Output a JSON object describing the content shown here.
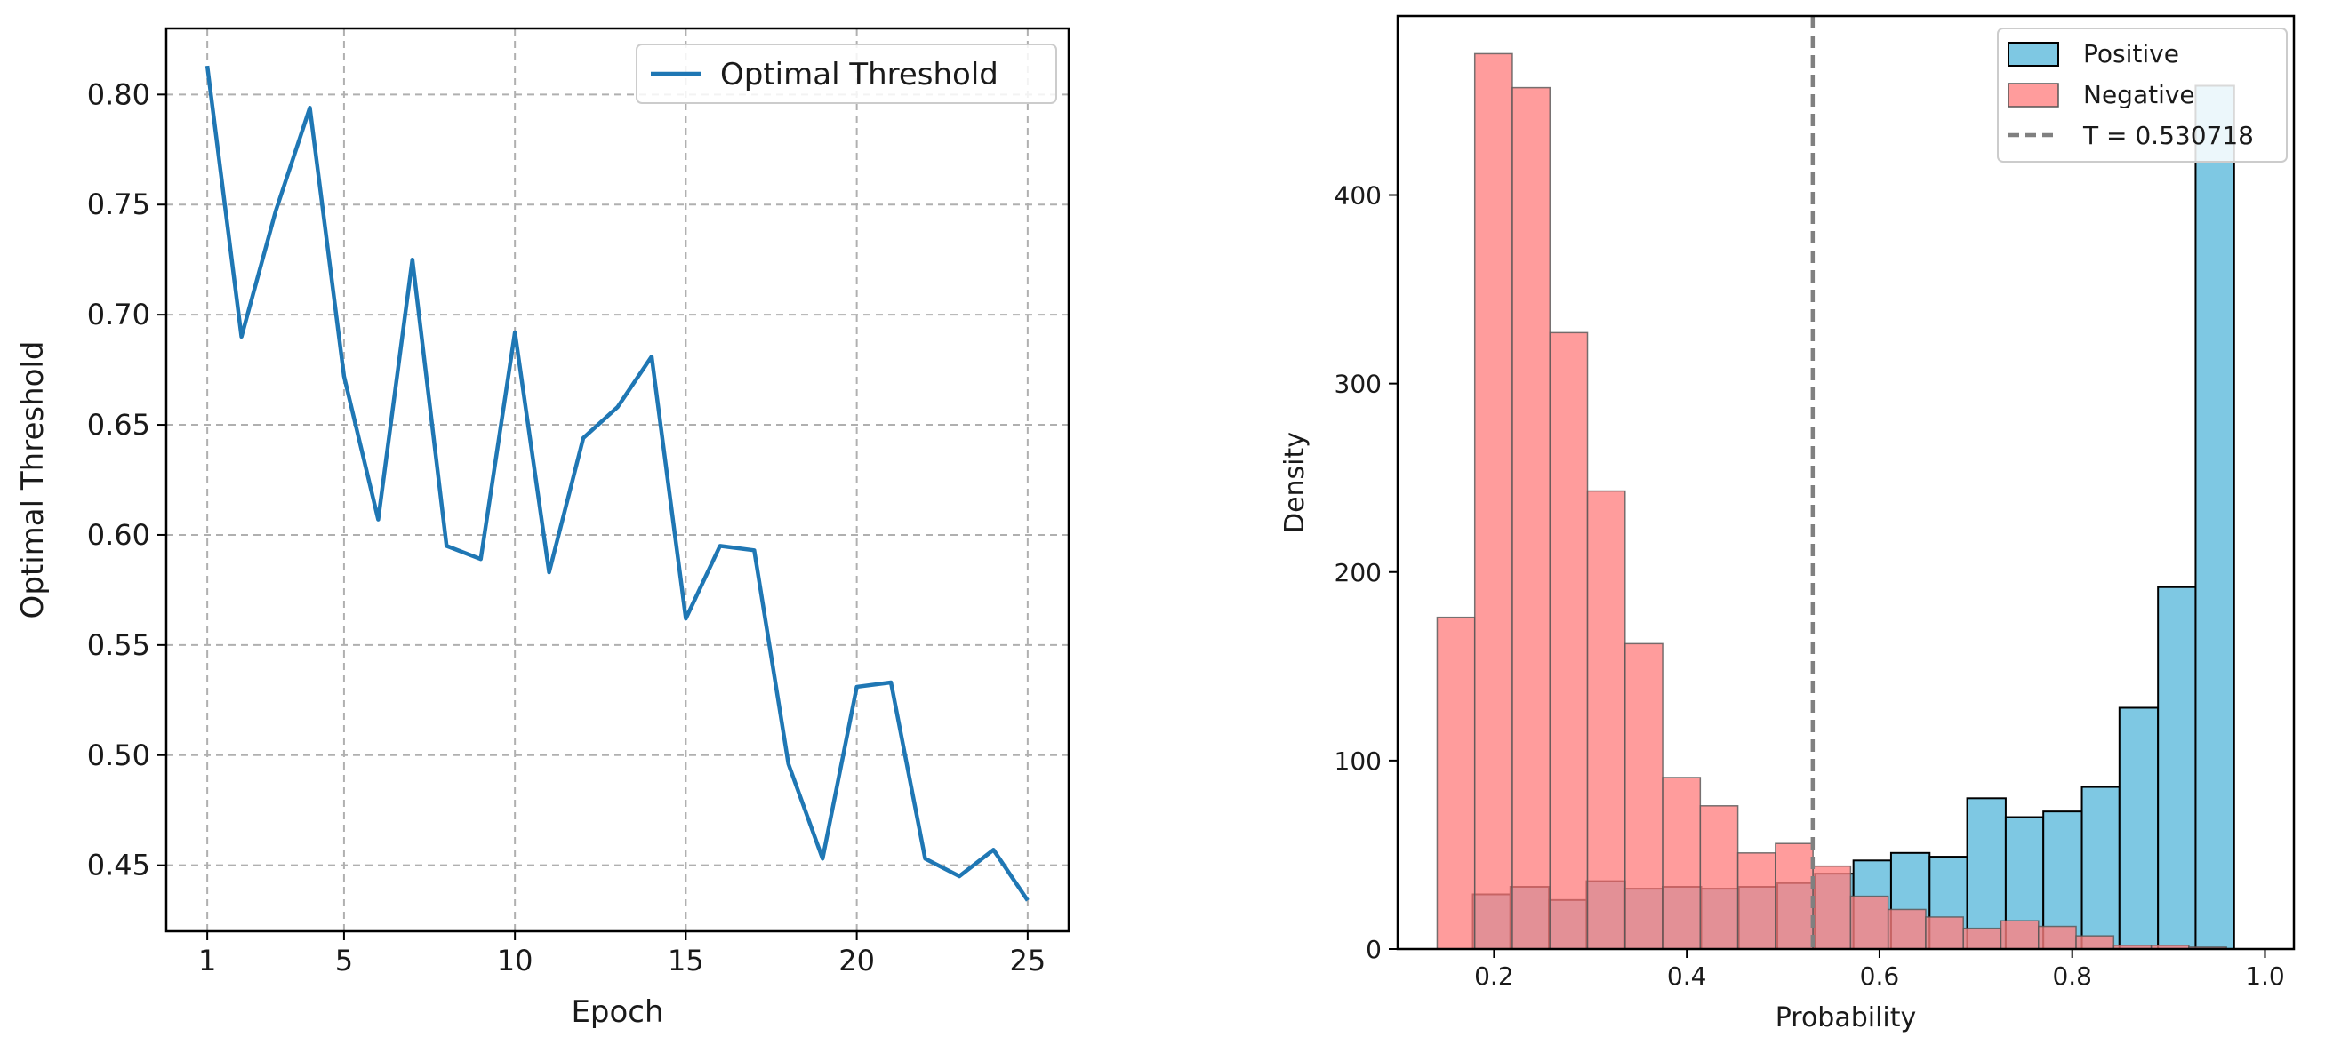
{
  "chart_data": [
    {
      "type": "line",
      "title": "",
      "xlabel": "Epoch",
      "ylabel": "Optimal Threshold",
      "xlim": [
        -0.2,
        26.2
      ],
      "ylim": [
        0.42,
        0.83
      ],
      "xticks": [
        1,
        5,
        10,
        15,
        20,
        25
      ],
      "yticks": [
        0.45,
        0.5,
        0.55,
        0.6,
        0.65,
        0.7,
        0.75,
        0.8
      ],
      "grid": true,
      "legend_position": "top-right",
      "series": [
        {
          "name": "Optimal Threshold",
          "color": "#1f77b4",
          "x": [
            1,
            2,
            3,
            4,
            5,
            6,
            7,
            8,
            9,
            10,
            11,
            12,
            13,
            14,
            15,
            16,
            17,
            18,
            19,
            20,
            21,
            22,
            23,
            24,
            25
          ],
          "values": [
            0.813,
            0.69,
            0.747,
            0.794,
            0.672,
            0.607,
            0.725,
            0.595,
            0.589,
            0.692,
            0.583,
            0.644,
            0.658,
            0.681,
            0.562,
            0.595,
            0.593,
            0.496,
            0.453,
            0.531,
            0.533,
            0.453,
            0.445,
            0.457,
            0.434
          ]
        }
      ]
    },
    {
      "type": "histogram",
      "title": "",
      "xlabel": "Probability",
      "ylabel": "Density",
      "xlim": [
        0.1,
        1.03
      ],
      "ylim": [
        0,
        495
      ],
      "xticks": [
        0.2,
        0.4,
        0.6,
        0.8,
        1.0
      ],
      "yticks": [
        0,
        100,
        200,
        300,
        400
      ],
      "grid": false,
      "legend_position": "top-right",
      "threshold": {
        "label": "T = 0.530718",
        "value": 0.530718,
        "color": "#808080"
      },
      "series": [
        {
          "name": "Positive",
          "color": "#7ec8e3",
          "edge_color": "#000000",
          "bins": [
            [
              0.178,
              0.217
            ],
            [
              0.217,
              0.257
            ],
            [
              0.257,
              0.296
            ],
            [
              0.296,
              0.336
            ],
            [
              0.336,
              0.375
            ],
            [
              0.375,
              0.415
            ],
            [
              0.415,
              0.454
            ],
            [
              0.454,
              0.494
            ],
            [
              0.494,
              0.533
            ],
            [
              0.533,
              0.573
            ],
            [
              0.573,
              0.612
            ],
            [
              0.612,
              0.652
            ],
            [
              0.652,
              0.691
            ],
            [
              0.691,
              0.731
            ],
            [
              0.731,
              0.77
            ],
            [
              0.77,
              0.81
            ],
            [
              0.81,
              0.849
            ],
            [
              0.849,
              0.889
            ],
            [
              0.889,
              0.928
            ],
            [
              0.928,
              0.968
            ],
            [
              0.968,
              1.0
            ]
          ],
          "values": [
            29,
            33,
            26,
            36,
            32,
            33,
            32,
            33,
            35,
            40,
            47,
            51,
            49,
            80,
            70,
            73,
            86,
            128,
            192,
            458,
            0
          ]
        },
        {
          "name": "Negative",
          "color": "#ff8080",
          "edge_color": "#555555",
          "bins": [
            [
              0.141,
              0.18
            ],
            [
              0.18,
              0.219
            ],
            [
              0.219,
              0.258
            ],
            [
              0.258,
              0.297
            ],
            [
              0.297,
              0.336
            ],
            [
              0.336,
              0.375
            ],
            [
              0.375,
              0.414
            ],
            [
              0.414,
              0.453
            ],
            [
              0.453,
              0.492
            ],
            [
              0.492,
              0.531
            ],
            [
              0.531,
              0.57
            ],
            [
              0.57,
              0.609
            ],
            [
              0.609,
              0.648
            ],
            [
              0.648,
              0.687
            ],
            [
              0.687,
              0.726
            ],
            [
              0.726,
              0.765
            ],
            [
              0.765,
              0.804
            ],
            [
              0.804,
              0.843
            ],
            [
              0.843,
              0.882
            ],
            [
              0.882,
              0.921
            ],
            [
              0.921,
              0.96
            ]
          ],
          "values": [
            176,
            475,
            457,
            327,
            243,
            162,
            91,
            76,
            51,
            56,
            44,
            28,
            21,
            17,
            11,
            15,
            12,
            7,
            2,
            2,
            1
          ]
        }
      ]
    }
  ]
}
